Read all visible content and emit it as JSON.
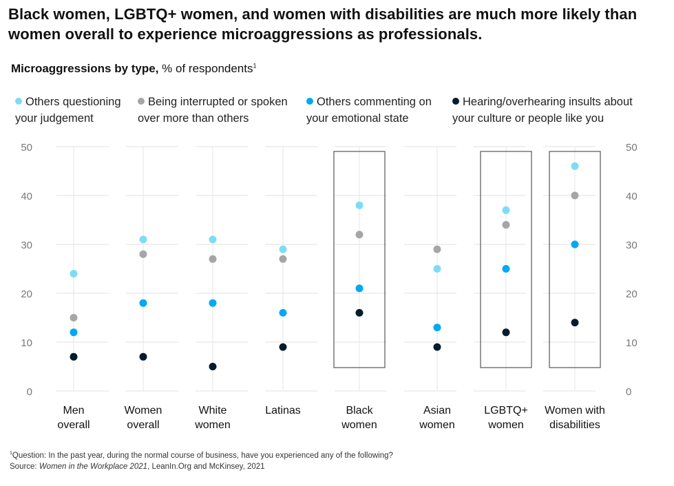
{
  "title": "Black women, LGBTQ+ women, and women with disabilities are much more likely than women overall to experience microaggressions as professionals.",
  "subtitle_bold": "Microaggressions by type,",
  "subtitle_rest": " % of respondents",
  "subtitle_sup": "1",
  "legend": [
    {
      "line1": "Others questioning",
      "line2": "your judgement",
      "color": "#7DDCF5"
    },
    {
      "line1": "Being interrupted or spoken",
      "line2": "over more than others",
      "color": "#A6A6A6"
    },
    {
      "line1": "Others commenting on",
      "line2": "your emotional state",
      "color": "#00A9F4"
    },
    {
      "line1": "Hearing/overhearing insults about",
      "line2": "your culture or people like you",
      "color": "#051C2C"
    }
  ],
  "footnote": {
    "sup": "1",
    "question": "Question: In the past year, during the normal course of business, have you experienced any of the following?",
    "source_prefix": "Source: ",
    "source_italic": "Women in the Workplace 2021",
    "source_rest": ", LeanIn.Org and McKinsey, 2021"
  },
  "chart_data": {
    "type": "scatter",
    "ylim": [
      0,
      50
    ],
    "yticks": [
      0,
      10,
      20,
      30,
      40,
      50
    ],
    "categories": [
      {
        "lines": [
          "Men",
          "overall"
        ],
        "highlighted": false
      },
      {
        "lines": [
          "Women",
          "overall"
        ],
        "highlighted": false
      },
      {
        "lines": [
          "White",
          "women"
        ],
        "highlighted": false
      },
      {
        "lines": [
          "Latinas"
        ],
        "highlighted": false
      },
      {
        "lines": [
          "Black",
          "women"
        ],
        "highlighted": true
      },
      {
        "lines": [
          "Asian",
          "women"
        ],
        "highlighted": false
      },
      {
        "lines": [
          "LGBTQ+",
          "women"
        ],
        "highlighted": true
      },
      {
        "lines": [
          "Women with",
          "disabilities"
        ],
        "highlighted": true
      }
    ],
    "series": [
      {
        "name": "Others questioning your judgement",
        "color": "#7DDCF5",
        "values": [
          24,
          31,
          31,
          29,
          38,
          25,
          37,
          46
        ]
      },
      {
        "name": "Being interrupted or spoken over more than others",
        "color": "#A6A6A6",
        "values": [
          15,
          28,
          27,
          27,
          32,
          29,
          34,
          40
        ]
      },
      {
        "name": "Others commenting on your emotional state",
        "color": "#00A9F4",
        "values": [
          12,
          18,
          18,
          16,
          21,
          13,
          25,
          30
        ]
      },
      {
        "name": "Hearing/overhearing insults about your culture or people like you",
        "color": "#051C2C",
        "values": [
          7,
          7,
          5,
          9,
          16,
          9,
          12,
          14
        ]
      }
    ]
  }
}
